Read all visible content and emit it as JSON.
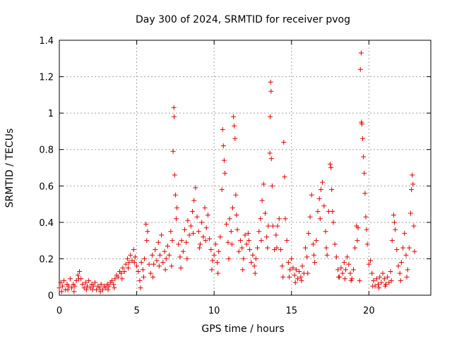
{
  "chart_data": {
    "type": "scatter",
    "title": "Day 300 of 2024, SRMTID for receiver pvog",
    "xlabel": "GPS time / hours",
    "ylabel": "SRMTID / TECUs",
    "xlim": [
      0,
      24
    ],
    "ylim": [
      0,
      1.4
    ],
    "x_ticks": [
      0,
      5,
      10,
      15,
      20
    ],
    "x_tick_labels": [
      "0",
      "5",
      "10",
      "15",
      "20"
    ],
    "y_ticks": [
      0,
      0.2,
      0.4,
      0.6,
      0.8,
      1.0,
      1.2,
      1.4
    ],
    "y_tick_labels": [
      "0",
      "0.2",
      "0.4",
      "0.6",
      "0.8",
      "1",
      "1.2",
      "1.4"
    ],
    "grid": true,
    "marker": "+",
    "color": "#e00000",
    "series": [
      {
        "name": "SRMTID",
        "points": [
          [
            0.0,
            0.04
          ],
          [
            0.1,
            0.07
          ],
          [
            0.2,
            0.05
          ],
          [
            0.3,
            0.08
          ],
          [
            0.4,
            0.03
          ],
          [
            0.5,
            0.06
          ],
          [
            0.6,
            0.05
          ],
          [
            0.7,
            0.09
          ],
          [
            0.8,
            0.04
          ],
          [
            0.9,
            0.06
          ],
          [
            1.0,
            0.05
          ],
          [
            1.1,
            0.08
          ],
          [
            1.2,
            0.11
          ],
          [
            1.3,
            0.13
          ],
          [
            1.4,
            0.09
          ],
          [
            1.5,
            0.06
          ],
          [
            1.6,
            0.04
          ],
          [
            1.7,
            0.07
          ],
          [
            1.8,
            0.05
          ],
          [
            1.9,
            0.08
          ],
          [
            2.0,
            0.04
          ],
          [
            2.1,
            0.06
          ],
          [
            2.2,
            0.05
          ],
          [
            2.3,
            0.07
          ],
          [
            2.4,
            0.03
          ],
          [
            2.5,
            0.05
          ],
          [
            2.6,
            0.04
          ],
          [
            2.7,
            0.06
          ],
          [
            2.8,
            0.03
          ],
          [
            2.9,
            0.05
          ],
          [
            3.0,
            0.04
          ],
          [
            3.1,
            0.06
          ],
          [
            3.2,
            0.05
          ],
          [
            3.3,
            0.07
          ],
          [
            3.4,
            0.08
          ],
          [
            3.5,
            0.06
          ],
          [
            3.6,
            0.09
          ],
          [
            3.7,
            0.11
          ],
          [
            3.8,
            0.1
          ],
          [
            3.9,
            0.13
          ],
          [
            4.0,
            0.12
          ],
          [
            4.1,
            0.15
          ],
          [
            4.2,
            0.13
          ],
          [
            4.3,
            0.17
          ],
          [
            4.4,
            0.2
          ],
          [
            4.5,
            0.18
          ],
          [
            4.6,
            0.22
          ],
          [
            4.7,
            0.19
          ],
          [
            4.8,
            0.25
          ],
          [
            4.9,
            0.21
          ],
          [
            5.0,
            0.16
          ],
          [
            5.1,
            0.13
          ],
          [
            5.2,
            0.08
          ],
          [
            5.3,
            0.18
          ],
          [
            5.4,
            0.14
          ],
          [
            5.5,
            0.2
          ],
          [
            5.6,
            0.39
          ],
          [
            5.7,
            0.35
          ],
          [
            5.8,
            0.17
          ],
          [
            5.9,
            0.12
          ],
          [
            6.0,
            0.22
          ],
          [
            6.1,
            0.17
          ],
          [
            6.2,
            0.25
          ],
          [
            6.3,
            0.19
          ],
          [
            6.4,
            0.29
          ],
          [
            6.5,
            0.22
          ],
          [
            6.6,
            0.33
          ],
          [
            6.7,
            0.18
          ],
          [
            6.8,
            0.24
          ],
          [
            6.9,
            0.2
          ],
          [
            7.0,
            0.27
          ],
          [
            7.1,
            0.22
          ],
          [
            7.2,
            0.35
          ],
          [
            7.3,
            0.3
          ],
          [
            7.35,
            0.79
          ],
          [
            7.4,
            1.03
          ],
          [
            7.42,
            0.98
          ],
          [
            7.45,
            0.66
          ],
          [
            7.5,
            0.55
          ],
          [
            7.6,
            0.48
          ],
          [
            7.7,
            0.28
          ],
          [
            7.8,
            0.21
          ],
          [
            7.9,
            0.3
          ],
          [
            8.0,
            0.24
          ],
          [
            8.1,
            0.36
          ],
          [
            8.2,
            0.29
          ],
          [
            8.3,
            0.41
          ],
          [
            8.4,
            0.33
          ],
          [
            8.5,
            0.38
          ],
          [
            8.6,
            0.46
          ],
          [
            8.7,
            0.52
          ],
          [
            8.8,
            0.59
          ],
          [
            8.9,
            0.43
          ],
          [
            9.0,
            0.35
          ],
          [
            9.1,
            0.28
          ],
          [
            9.2,
            0.4
          ],
          [
            9.3,
            0.32
          ],
          [
            9.4,
            0.48
          ],
          [
            9.5,
            0.37
          ],
          [
            9.6,
            0.44
          ],
          [
            9.7,
            0.31
          ],
          [
            9.8,
            0.25
          ],
          [
            9.9,
            0.19
          ],
          [
            10.0,
            0.22
          ],
          [
            10.1,
            0.28
          ],
          [
            10.2,
            0.18
          ],
          [
            10.3,
            0.24
          ],
          [
            10.4,
            0.32
          ],
          [
            10.5,
            0.58
          ],
          [
            10.55,
            0.91
          ],
          [
            10.6,
            0.82
          ],
          [
            10.7,
            0.67
          ],
          [
            10.8,
            0.39
          ],
          [
            10.9,
            0.29
          ],
          [
            11.0,
            0.42
          ],
          [
            11.1,
            0.35
          ],
          [
            11.2,
            0.48
          ],
          [
            11.25,
            0.98
          ],
          [
            11.3,
            0.93
          ],
          [
            11.35,
            0.86
          ],
          [
            11.4,
            0.55
          ],
          [
            11.5,
            0.36
          ],
          [
            11.6,
            0.24
          ],
          [
            11.7,
            0.3
          ],
          [
            11.8,
            0.26
          ],
          [
            11.9,
            0.2
          ],
          [
            12.0,
            0.33
          ],
          [
            12.1,
            0.28
          ],
          [
            12.2,
            0.34
          ],
          [
            12.3,
            0.25
          ],
          [
            12.4,
            0.18
          ],
          [
            12.5,
            0.22
          ],
          [
            12.6,
            0.16
          ],
          [
            12.7,
            0.2
          ],
          [
            12.8,
            0.26
          ],
          [
            12.9,
            0.35
          ],
          [
            13.0,
            0.42
          ],
          [
            13.1,
            0.52
          ],
          [
            13.2,
            0.61
          ],
          [
            13.3,
            0.45
          ],
          [
            13.4,
            0.32
          ],
          [
            13.5,
            0.38
          ],
          [
            13.6,
            0.78
          ],
          [
            13.62,
            0.98
          ],
          [
            13.65,
            1.17
          ],
          [
            13.68,
            1.12
          ],
          [
            13.7,
            0.75
          ],
          [
            13.8,
            0.38
          ],
          [
            13.9,
            0.25
          ],
          [
            14.0,
            0.33
          ],
          [
            14.1,
            0.38
          ],
          [
            14.2,
            0.42
          ],
          [
            14.3,
            0.25
          ],
          [
            14.4,
            0.16
          ],
          [
            14.5,
            0.84
          ],
          [
            14.55,
            0.65
          ],
          [
            14.6,
            0.42
          ],
          [
            14.7,
            0.3
          ],
          [
            14.8,
            0.18
          ],
          [
            14.9,
            0.14
          ],
          [
            15.0,
            0.2
          ],
          [
            15.1,
            0.15
          ],
          [
            15.2,
            0.11
          ],
          [
            15.3,
            0.14
          ],
          [
            15.4,
            0.09
          ],
          [
            15.5,
            0.13
          ],
          [
            15.6,
            0.1
          ],
          [
            15.7,
            0.16
          ],
          [
            15.8,
            0.12
          ],
          [
            15.9,
            0.26
          ],
          [
            16.0,
            0.21
          ],
          [
            16.1,
            0.34
          ],
          [
            16.2,
            0.43
          ],
          [
            16.3,
            0.55
          ],
          [
            16.4,
            0.28
          ],
          [
            16.5,
            0.18
          ],
          [
            16.6,
            0.3
          ],
          [
            16.7,
            0.46
          ],
          [
            16.8,
            0.53
          ],
          [
            16.9,
            0.58
          ],
          [
            17.0,
            0.62
          ],
          [
            17.1,
            0.49
          ],
          [
            17.2,
            0.35
          ],
          [
            17.3,
            0.22
          ],
          [
            17.4,
            0.46
          ],
          [
            17.5,
            0.72
          ],
          [
            17.55,
            0.7
          ],
          [
            17.6,
            0.58
          ],
          [
            17.7,
            0.4
          ],
          [
            17.8,
            0.28
          ],
          [
            17.9,
            0.21
          ],
          [
            18.0,
            0.14
          ],
          [
            18.1,
            0.1
          ],
          [
            18.2,
            0.15
          ],
          [
            18.3,
            0.12
          ],
          [
            18.4,
            0.18
          ],
          [
            18.5,
            0.14
          ],
          [
            18.6,
            0.21
          ],
          [
            18.7,
            0.17
          ],
          [
            18.8,
            0.12
          ],
          [
            18.9,
            0.09
          ],
          [
            19.0,
            0.14
          ],
          [
            19.1,
            0.26
          ],
          [
            19.2,
            0.38
          ],
          [
            19.3,
            0.37
          ],
          [
            19.4,
            0.08
          ],
          [
            19.45,
            1.24
          ],
          [
            19.5,
            1.33
          ],
          [
            19.52,
            0.95
          ],
          [
            19.55,
            0.94
          ],
          [
            19.6,
            0.86
          ],
          [
            19.7,
            0.67
          ],
          [
            19.75,
            0.56
          ],
          [
            19.8,
            0.43
          ],
          [
            19.9,
            0.28
          ],
          [
            20.0,
            0.17
          ],
          [
            20.1,
            0.19
          ],
          [
            20.2,
            0.12
          ],
          [
            20.3,
            0.08
          ],
          [
            20.4,
            0.05
          ],
          [
            20.5,
            0.09
          ],
          [
            20.6,
            0.06
          ],
          [
            20.7,
            0.1
          ],
          [
            20.8,
            0.07
          ],
          [
            20.9,
            0.12
          ],
          [
            21.0,
            0.09
          ],
          [
            21.1,
            0.06
          ],
          [
            21.2,
            0.1
          ],
          [
            21.3,
            0.07
          ],
          [
            21.4,
            0.13
          ],
          [
            21.5,
            0.3
          ],
          [
            21.6,
            0.44
          ],
          [
            21.7,
            0.36
          ],
          [
            21.8,
            0.25
          ],
          [
            21.9,
            0.16
          ],
          [
            22.0,
            0.12
          ],
          [
            22.1,
            0.18
          ],
          [
            22.2,
            0.26
          ],
          [
            22.3,
            0.34
          ],
          [
            22.4,
            0.22
          ],
          [
            22.5,
            0.14
          ],
          [
            22.6,
            0.26
          ],
          [
            22.7,
            0.45
          ],
          [
            22.75,
            0.58
          ],
          [
            22.8,
            0.66
          ],
          [
            22.85,
            0.61
          ],
          [
            22.9,
            0.38
          ],
          [
            22.95,
            0.24
          ],
          [
            0.15,
            0.02
          ],
          [
            0.55,
            0.03
          ],
          [
            0.95,
            0.02
          ],
          [
            1.25,
            0.09
          ],
          [
            1.75,
            0.03
          ],
          [
            2.15,
            0.03
          ],
          [
            2.65,
            0.02
          ],
          [
            3.15,
            0.03
          ],
          [
            3.55,
            0.04
          ],
          [
            4.05,
            0.09
          ],
          [
            4.45,
            0.15
          ],
          [
            4.85,
            0.18
          ],
          [
            5.25,
            0.04
          ],
          [
            5.45,
            0.1
          ],
          [
            5.65,
            0.3
          ],
          [
            6.05,
            0.1
          ],
          [
            6.45,
            0.16
          ],
          [
            6.85,
            0.14
          ],
          [
            7.25,
            0.16
          ],
          [
            7.55,
            0.42
          ],
          [
            7.85,
            0.15
          ],
          [
            8.25,
            0.2
          ],
          [
            8.65,
            0.34
          ],
          [
            9.05,
            0.26
          ],
          [
            9.45,
            0.3
          ],
          [
            9.85,
            0.14
          ],
          [
            10.25,
            0.12
          ],
          [
            10.65,
            0.74
          ],
          [
            10.95,
            0.2
          ],
          [
            11.15,
            0.28
          ],
          [
            11.45,
            0.44
          ],
          [
            11.85,
            0.14
          ],
          [
            12.25,
            0.3
          ],
          [
            12.65,
            0.12
          ],
          [
            13.05,
            0.3
          ],
          [
            13.45,
            0.26
          ],
          [
            13.75,
            0.6
          ],
          [
            14.05,
            0.26
          ],
          [
            14.45,
            0.1
          ],
          [
            14.85,
            0.1
          ],
          [
            15.25,
            0.07
          ],
          [
            15.65,
            0.08
          ],
          [
            16.05,
            0.12
          ],
          [
            16.45,
            0.22
          ],
          [
            16.85,
            0.42
          ],
          [
            17.25,
            0.26
          ],
          [
            17.65,
            0.46
          ],
          [
            18.05,
            0.1
          ],
          [
            18.45,
            0.09
          ],
          [
            18.85,
            0.08
          ],
          [
            19.25,
            0.3
          ],
          [
            19.65,
            0.76
          ],
          [
            19.85,
            0.36
          ],
          [
            20.25,
            0.05
          ],
          [
            20.65,
            0.04
          ],
          [
            21.05,
            0.05
          ],
          [
            21.45,
            0.08
          ],
          [
            21.65,
            0.4
          ],
          [
            22.05,
            0.08
          ],
          [
            22.45,
            0.1
          ]
        ]
      }
    ]
  }
}
